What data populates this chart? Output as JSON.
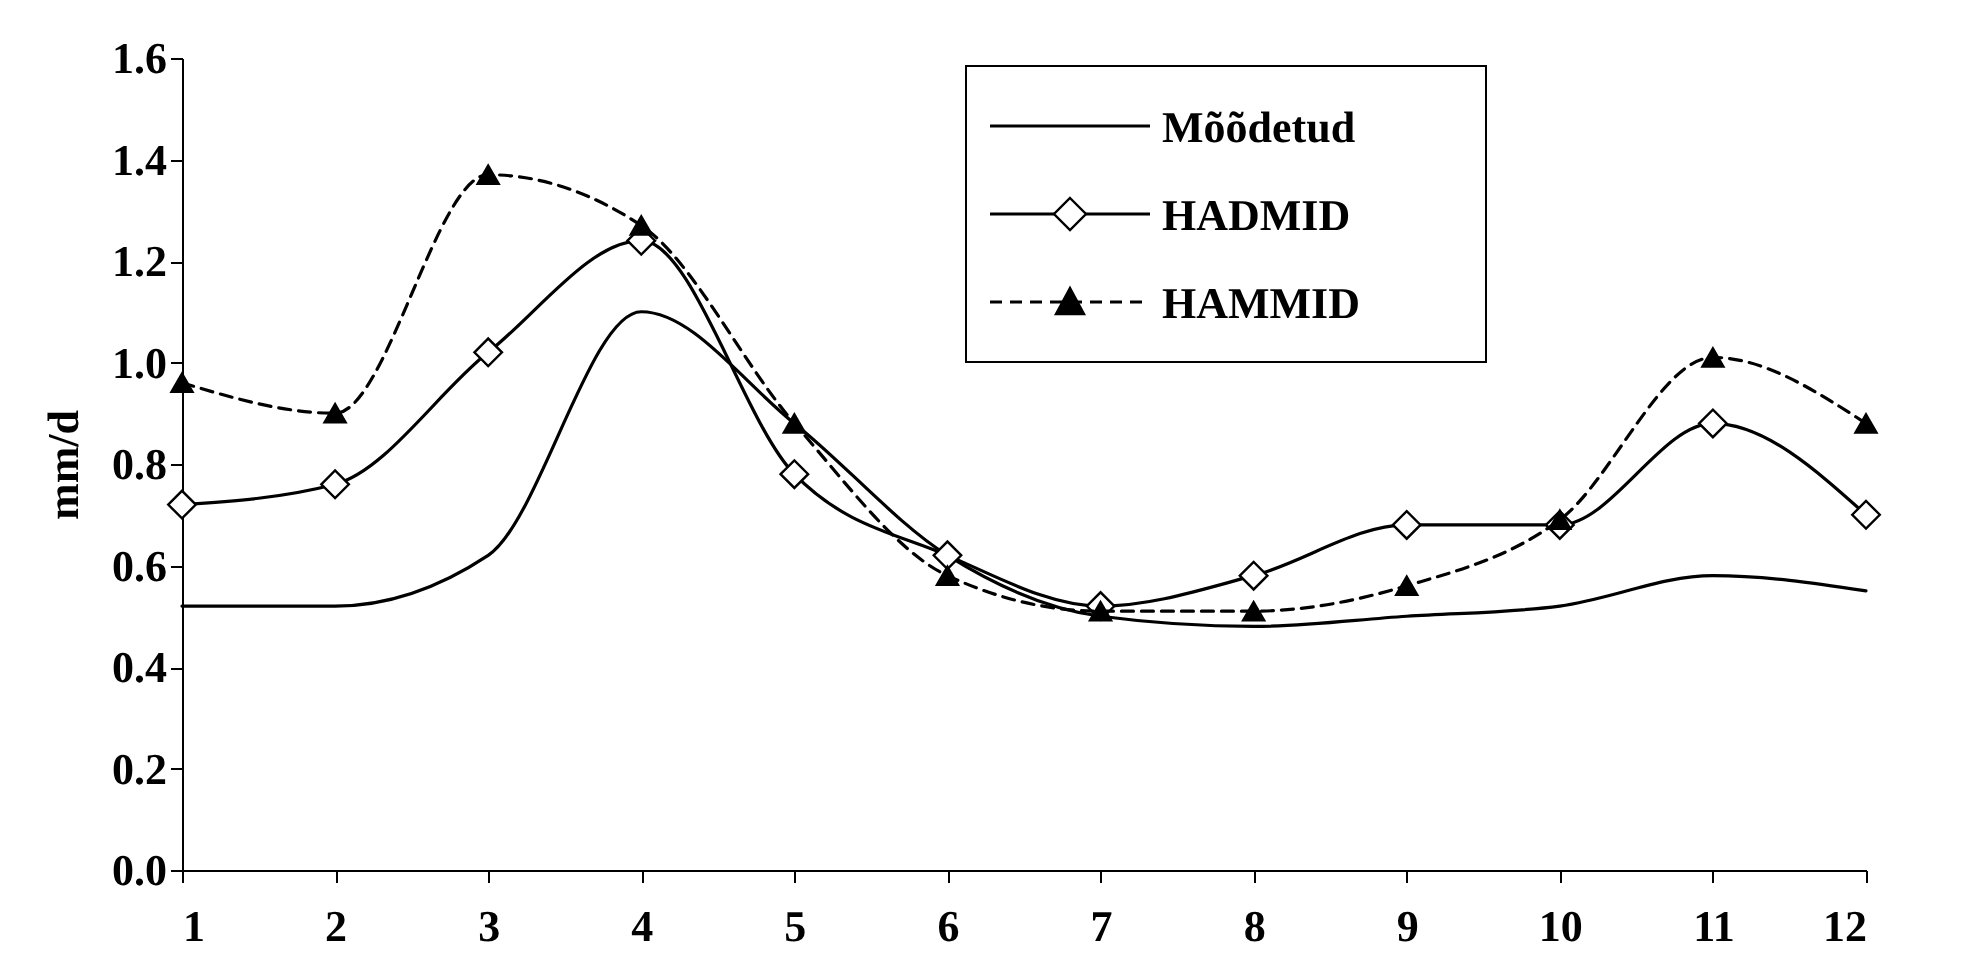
{
  "chart_data": {
    "type": "line",
    "ylabel": "mm/d",
    "x": [
      1,
      2,
      3,
      4,
      5,
      6,
      7,
      8,
      9,
      10,
      11,
      12
    ],
    "xlim": [
      1,
      12
    ],
    "xticks": [
      1,
      2,
      3,
      4,
      5,
      6,
      7,
      8,
      9,
      10,
      11,
      12
    ],
    "ylim": [
      0,
      1.6
    ],
    "yticks": [
      {
        "value": 0,
        "label": "0.0"
      },
      {
        "value": 0.2,
        "label": "0.2"
      },
      {
        "value": 0.4,
        "label": "0.4"
      },
      {
        "value": 0.6,
        "label": "0.6"
      },
      {
        "value": 0.8,
        "label": "0.8"
      },
      {
        "value": 1,
        "label": "1.0"
      },
      {
        "value": 1.2,
        "label": "1.2"
      },
      {
        "value": 1.4,
        "label": "1.4"
      },
      {
        "value": 1.6,
        "label": "1.6"
      }
    ],
    "grid": false,
    "legend": "top right",
    "series": [
      {
        "name": "Mõõdetud",
        "color": "#000000",
        "marker": "none",
        "line_style": "solid",
        "values": [
          0.52,
          0.52,
          0.62,
          1.1,
          0.88,
          0.62,
          0.5,
          0.48,
          0.5,
          0.52,
          0.58,
          0.55
        ]
      },
      {
        "name": "HADMID",
        "color": "#000000",
        "marker": "diamond",
        "line_style": "solid",
        "values": [
          0.72,
          0.76,
          1.02,
          1.24,
          0.78,
          0.62,
          0.52,
          0.58,
          0.68,
          0.68,
          0.88,
          0.7
        ]
      },
      {
        "name": "HAMMID",
        "color": "#000000",
        "marker": "triangle",
        "line_style": "dashed",
        "values": [
          0.96,
          0.9,
          1.37,
          1.27,
          0.88,
          0.58,
          0.51,
          0.51,
          0.56,
          0.69,
          1.01,
          0.88
        ]
      }
    ]
  }
}
